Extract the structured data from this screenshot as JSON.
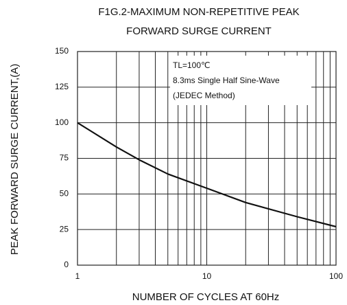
{
  "chart_data": {
    "type": "line",
    "title": [
      "F1G.2-MAXIMUM NON-REPETITIVE PEAK",
      "FORWARD SURGE CURRENT"
    ],
    "xlabel": "NUMBER OF CYCLES AT 60Hz",
    "ylabel": "PEAK FORWARD SURGE CURRENT,(A)",
    "annotations": [
      "TL=100℃",
      "8.3ms Single Half Sine-Wave",
      "(JEDEC Method)"
    ],
    "xscale": "log",
    "xlim": [
      1,
      100
    ],
    "xticks": [
      1,
      10,
      100
    ],
    "xgrid_minor": [
      2,
      3,
      4,
      5,
      6,
      7,
      8,
      9,
      20,
      30,
      40,
      50,
      60,
      70,
      80,
      90
    ],
    "ylim": [
      0,
      150
    ],
    "yticks": [
      0,
      25,
      50,
      75,
      100,
      125,
      150
    ],
    "grid": true,
    "series": [
      {
        "color": "#111111",
        "x": [
          1,
          2,
          3,
          5,
          10,
          20,
          50,
          100
        ],
        "values": [
          100,
          83,
          74,
          64,
          54,
          44,
          34,
          27
        ]
      }
    ]
  }
}
